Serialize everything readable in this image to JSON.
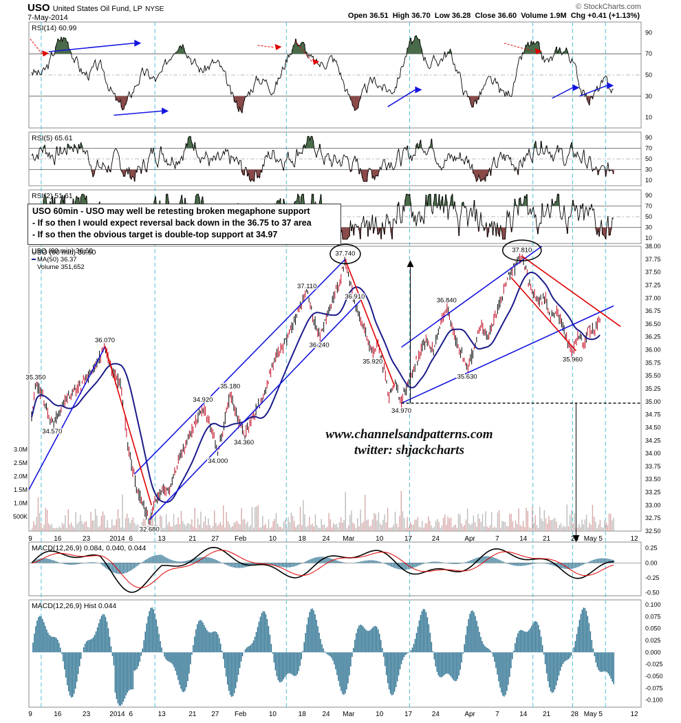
{
  "header": {
    "ticker": "USO",
    "name": "United States Oil Fund, LP",
    "exchange": "NYSE",
    "date": "7-May-2014",
    "watermark": "© StockCharts.com",
    "quote": "Open 36.51  High 36.70  Low 36.28  Close 36.60  Volume 1.9M  Chg +0.41 (+1.13%)"
  },
  "colors": {
    "price_up": "#000000",
    "price_down": "#c0001b",
    "ma": "#1a1a8a",
    "trend": "#1414e0",
    "red_line": "#e00000",
    "volume": "#d8a8a8",
    "macd": "#000000",
    "signal": "#e00000",
    "hist": "#2a7090",
    "rsi_green": "#4a6b4a",
    "rsi_brown": "#8a4a4a",
    "cycle": "#4ec0d8"
  },
  "annotation": {
    "lines": [
      "USO  60min - USO may well be retesting broken megaphone support",
      "- If so then I would expect reversal back down in the 36.75 to 37 area",
      "- If so then the obvious target is double-top support at 34.97"
    ]
  },
  "credit": {
    "site": "www.channelsandpatterns.com",
    "twitter": "twitter: shjackcharts"
  },
  "chart_data": [
    {
      "type": "line",
      "name": "rsi14",
      "title": "RSI(14) 60.99",
      "ylim": [
        0,
        100
      ],
      "yticks": [
        10,
        30,
        50,
        70,
        90
      ],
      "levels": [
        30,
        70
      ]
    },
    {
      "type": "line",
      "name": "rsi5",
      "title": "RSI(5) 65.61",
      "ylim": [
        0,
        100
      ],
      "yticks": [
        10,
        30,
        50,
        70,
        90
      ],
      "levels": [
        30,
        70
      ]
    },
    {
      "type": "line",
      "name": "rsi2",
      "title": "RSI(2) 51.61",
      "ylim": [
        0,
        100
      ],
      "yticks": [
        10,
        30,
        50,
        70,
        90
      ],
      "levels": [
        30,
        70
      ]
    },
    {
      "type": "line",
      "name": "price",
      "title": "USO (60 min) 36.60",
      "legend": [
        "MA(50) 36.37",
        "Volume 351,652"
      ],
      "ylim": [
        32.5,
        38.0
      ],
      "yticks": [
        "32.50",
        "32.75",
        "33.00",
        "33.25",
        "33.50",
        "33.75",
        "34.00",
        "34.25",
        "34.50",
        "34.75",
        "35.00",
        "35.25",
        "35.50",
        "35.75",
        "36.00",
        "36.25",
        "36.50",
        "36.75",
        "37.00",
        "37.25",
        "37.50",
        "37.75",
        "38.00"
      ],
      "vol_ticks": [
        "500K",
        "1.0M",
        "1.5M",
        "2.0M",
        "2.5M",
        "3.0M"
      ],
      "anchors": [
        {
          "x": 0,
          "y": 34.7
        },
        {
          "x": 6,
          "y": 35.35
        },
        {
          "x": 16,
          "y": 35.1
        },
        {
          "x": 30,
          "y": 34.57
        },
        {
          "x": 50,
          "y": 35.05
        },
        {
          "x": 72,
          "y": 35.3
        },
        {
          "x": 90,
          "y": 35.6
        },
        {
          "x": 107,
          "y": 36.07
        },
        {
          "x": 120,
          "y": 35.5
        },
        {
          "x": 130,
          "y": 35.35
        },
        {
          "x": 140,
          "y": 34.2
        },
        {
          "x": 150,
          "y": 33.5
        },
        {
          "x": 162,
          "y": 33.0
        },
        {
          "x": 172,
          "y": 32.68
        },
        {
          "x": 180,
          "y": 33.1
        },
        {
          "x": 190,
          "y": 33.3
        },
        {
          "x": 200,
          "y": 33.25
        },
        {
          "x": 210,
          "y": 33.7
        },
        {
          "x": 225,
          "y": 34.2
        },
        {
          "x": 240,
          "y": 34.6
        },
        {
          "x": 250,
          "y": 34.92
        },
        {
          "x": 262,
          "y": 34.5
        },
        {
          "x": 272,
          "y": 34.0
        },
        {
          "x": 282,
          "y": 34.6
        },
        {
          "x": 290,
          "y": 35.18
        },
        {
          "x": 300,
          "y": 34.7
        },
        {
          "x": 310,
          "y": 34.36
        },
        {
          "x": 322,
          "y": 34.7
        },
        {
          "x": 335,
          "y": 35.0
        },
        {
          "x": 345,
          "y": 35.4
        },
        {
          "x": 358,
          "y": 35.9
        },
        {
          "x": 368,
          "y": 36.1
        },
        {
          "x": 380,
          "y": 36.4
        },
        {
          "x": 392,
          "y": 36.85
        },
        {
          "x": 402,
          "y": 37.11
        },
        {
          "x": 410,
          "y": 36.7
        },
        {
          "x": 420,
          "y": 36.24
        },
        {
          "x": 430,
          "y": 36.6
        },
        {
          "x": 440,
          "y": 37.0
        },
        {
          "x": 450,
          "y": 37.3
        },
        {
          "x": 458,
          "y": 37.74
        },
        {
          "x": 465,
          "y": 37.3
        },
        {
          "x": 472,
          "y": 36.91
        },
        {
          "x": 480,
          "y": 36.6
        },
        {
          "x": 490,
          "y": 36.2
        },
        {
          "x": 498,
          "y": 35.92
        },
        {
          "x": 506,
          "y": 36.1
        },
        {
          "x": 515,
          "y": 35.6
        },
        {
          "x": 522,
          "y": 35.1
        },
        {
          "x": 530,
          "y": 35.4
        },
        {
          "x": 540,
          "y": 34.97
        },
        {
          "x": 548,
          "y": 35.3
        },
        {
          "x": 556,
          "y": 35.6
        },
        {
          "x": 566,
          "y": 35.9
        },
        {
          "x": 576,
          "y": 36.2
        },
        {
          "x": 586,
          "y": 36.0
        },
        {
          "x": 596,
          "y": 36.5
        },
        {
          "x": 606,
          "y": 36.84
        },
        {
          "x": 616,
          "y": 36.3
        },
        {
          "x": 626,
          "y": 36.0
        },
        {
          "x": 636,
          "y": 35.63
        },
        {
          "x": 646,
          "y": 36.0
        },
        {
          "x": 656,
          "y": 36.5
        },
        {
          "x": 666,
          "y": 36.2
        },
        {
          "x": 676,
          "y": 36.6
        },
        {
          "x": 686,
          "y": 37.0
        },
        {
          "x": 696,
          "y": 37.4
        },
        {
          "x": 706,
          "y": 37.6
        },
        {
          "x": 716,
          "y": 37.81
        },
        {
          "x": 724,
          "y": 37.4
        },
        {
          "x": 732,
          "y": 37.1
        },
        {
          "x": 742,
          "y": 36.9
        },
        {
          "x": 750,
          "y": 37.0
        },
        {
          "x": 758,
          "y": 36.6
        },
        {
          "x": 766,
          "y": 36.8
        },
        {
          "x": 774,
          "y": 36.5
        },
        {
          "x": 782,
          "y": 36.2
        },
        {
          "x": 790,
          "y": 35.96
        },
        {
          "x": 798,
          "y": 36.3
        },
        {
          "x": 806,
          "y": 36.1
        },
        {
          "x": 814,
          "y": 36.4
        },
        {
          "x": 822,
          "y": 36.35
        },
        {
          "x": 830,
          "y": 36.6
        }
      ],
      "labels": [
        {
          "x": 6,
          "y": 35.35,
          "text": "35.350",
          "pos": "above"
        },
        {
          "x": 30,
          "y": 34.57,
          "text": "34.570",
          "pos": "below"
        },
        {
          "x": 107,
          "y": 36.07,
          "text": "36.070",
          "pos": "above"
        },
        {
          "x": 172,
          "y": 32.68,
          "text": "32.680",
          "pos": "below"
        },
        {
          "x": 250,
          "y": 34.92,
          "text": "34.920",
          "pos": "above"
        },
        {
          "x": 272,
          "y": 34.0,
          "text": "34.000",
          "pos": "below"
        },
        {
          "x": 290,
          "y": 35.18,
          "text": "35.180",
          "pos": "above"
        },
        {
          "x": 310,
          "y": 34.36,
          "text": "34.360",
          "pos": "below"
        },
        {
          "x": 402,
          "y": 37.11,
          "text": "37.110",
          "pos": "above"
        },
        {
          "x": 420,
          "y": 36.24,
          "text": "36.240",
          "pos": "below"
        },
        {
          "x": 458,
          "y": 37.74,
          "text": "37.740",
          "pos": "above"
        },
        {
          "x": 472,
          "y": 36.91,
          "text": "36.910",
          "pos": "above"
        },
        {
          "x": 498,
          "y": 35.92,
          "text": "35.920",
          "pos": "below"
        },
        {
          "x": 540,
          "y": 34.97,
          "text": "34.970",
          "pos": "below"
        },
        {
          "x": 606,
          "y": 36.84,
          "text": "36.840",
          "pos": "above"
        },
        {
          "x": 636,
          "y": 35.63,
          "text": "35.630",
          "pos": "below"
        },
        {
          "x": 716,
          "y": 37.81,
          "text": "37.810",
          "pos": "above"
        },
        {
          "x": 790,
          "y": 35.96,
          "text": "35.960",
          "pos": "below"
        }
      ],
      "support_level": 34.97
    },
    {
      "type": "line",
      "name": "macd",
      "title": "MACD(12,26,9) 0.084, 0.040, 0.044",
      "ylim": [
        -0.55,
        0.35
      ],
      "yticks": [
        "0.25",
        "0.00",
        "-0.25",
        "-0.50"
      ]
    },
    {
      "type": "bar",
      "name": "macd_hist",
      "title": "MACD(12,26,9) Hist 0.044",
      "ylim": [
        -0.115,
        0.11
      ],
      "yticks": [
        "0.100",
        "0.075",
        "0.050",
        "0.025",
        "0.000",
        "-0.025",
        "-0.050",
        "-0.075",
        "-0.100"
      ]
    }
  ],
  "x_axis": {
    "labels": [
      {
        "x": -2,
        "text": "9"
      },
      {
        "x": 38,
        "text": "16"
      },
      {
        "x": 80,
        "text": "23"
      },
      {
        "x": 125,
        "text": "2014"
      },
      {
        "x": 145,
        "text": "6"
      },
      {
        "x": 190,
        "text": "13"
      },
      {
        "x": 235,
        "text": "21"
      },
      {
        "x": 268,
        "text": "27"
      },
      {
        "x": 305,
        "text": "Feb"
      },
      {
        "x": 352,
        "text": "10"
      },
      {
        "x": 395,
        "text": "18"
      },
      {
        "x": 430,
        "text": "24"
      },
      {
        "x": 463,
        "text": "Mar"
      },
      {
        "x": 508,
        "text": "10"
      },
      {
        "x": 550,
        "text": "17"
      },
      {
        "x": 590,
        "text": "24"
      },
      {
        "x": 640,
        "text": "Apr"
      },
      {
        "x": 680,
        "text": "7"
      },
      {
        "x": 718,
        "text": "14"
      },
      {
        "x": 752,
        "text": "21"
      },
      {
        "x": 793,
        "text": "28"
      },
      {
        "x": 820,
        "text": "May 5"
      },
      {
        "x": 880,
        "text": "12"
      }
    ],
    "cycle_lines": [
      14,
      180,
      372,
      552,
      732,
      790,
      838
    ],
    "range": [
      -4,
      890
    ]
  }
}
